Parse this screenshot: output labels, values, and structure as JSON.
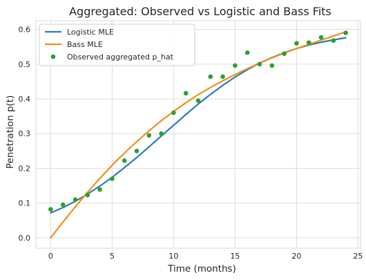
{
  "chart_data": {
    "type": "line",
    "title": "Aggregated: Observed vs Logistic and Bass Fits",
    "xlabel": "Time (months)",
    "ylabel": "Penetration p(t)",
    "xlim": [
      -1.2,
      25.2
    ],
    "ylim": [
      -0.03,
      0.625
    ],
    "x_ticks": [
      0,
      5,
      10,
      15,
      20,
      25
    ],
    "y_ticks": [
      0.0,
      0.1,
      0.2,
      0.3,
      0.4,
      0.5,
      0.6
    ],
    "x_tick_labels": [
      "0",
      "5",
      "10",
      "15",
      "20",
      "25"
    ],
    "y_tick_labels": [
      "0.0",
      "0.1",
      "0.2",
      "0.3",
      "0.4",
      "0.5",
      "0.6"
    ],
    "grid": true,
    "legend_position": "top-left",
    "series": [
      {
        "name": "Logistic MLE",
        "kind": "line",
        "color": "#2b7bb9",
        "x": [
          0,
          1,
          2,
          3,
          4,
          5,
          6,
          7,
          8,
          9,
          10,
          11,
          12,
          13,
          14,
          15,
          16,
          17,
          18,
          19,
          20,
          21,
          22,
          23,
          24
        ],
        "y": [
          0.072,
          0.087,
          0.105,
          0.126,
          0.149,
          0.174,
          0.202,
          0.231,
          0.262,
          0.293,
          0.324,
          0.355,
          0.385,
          0.413,
          0.439,
          0.463,
          0.484,
          0.503,
          0.519,
          0.533,
          0.545,
          0.555,
          0.563,
          0.57,
          0.576
        ]
      },
      {
        "name": "Bass MLE",
        "kind": "line",
        "color": "#f28e1c",
        "x": [
          0,
          1,
          2,
          3,
          4,
          5,
          6,
          7,
          8,
          9,
          10,
          11,
          12,
          13,
          14,
          15,
          16,
          17,
          18,
          19,
          20,
          21,
          22,
          23,
          24
        ],
        "y": [
          0.0,
          0.045,
          0.089,
          0.131,
          0.171,
          0.209,
          0.244,
          0.277,
          0.308,
          0.337,
          0.364,
          0.389,
          0.412,
          0.433,
          0.452,
          0.47,
          0.487,
          0.503,
          0.518,
          0.532,
          0.545,
          0.557,
          0.569,
          0.581,
          0.593
        ]
      },
      {
        "name": "Observed aggregated p_hat",
        "kind": "scatter",
        "color": "#2ca02c",
        "x": [
          0,
          1,
          2,
          3,
          4,
          5,
          6,
          7,
          8,
          9,
          10,
          11,
          12,
          13,
          14,
          15,
          16,
          17,
          18,
          19,
          20,
          21,
          22,
          23,
          24
        ],
        "y": [
          0.082,
          0.095,
          0.11,
          0.123,
          0.139,
          0.17,
          0.222,
          0.25,
          0.295,
          0.3,
          0.36,
          0.416,
          0.395,
          0.464,
          0.464,
          0.496,
          0.533,
          0.5,
          0.496,
          0.53,
          0.56,
          0.562,
          0.577,
          0.568,
          0.59
        ]
      }
    ]
  }
}
